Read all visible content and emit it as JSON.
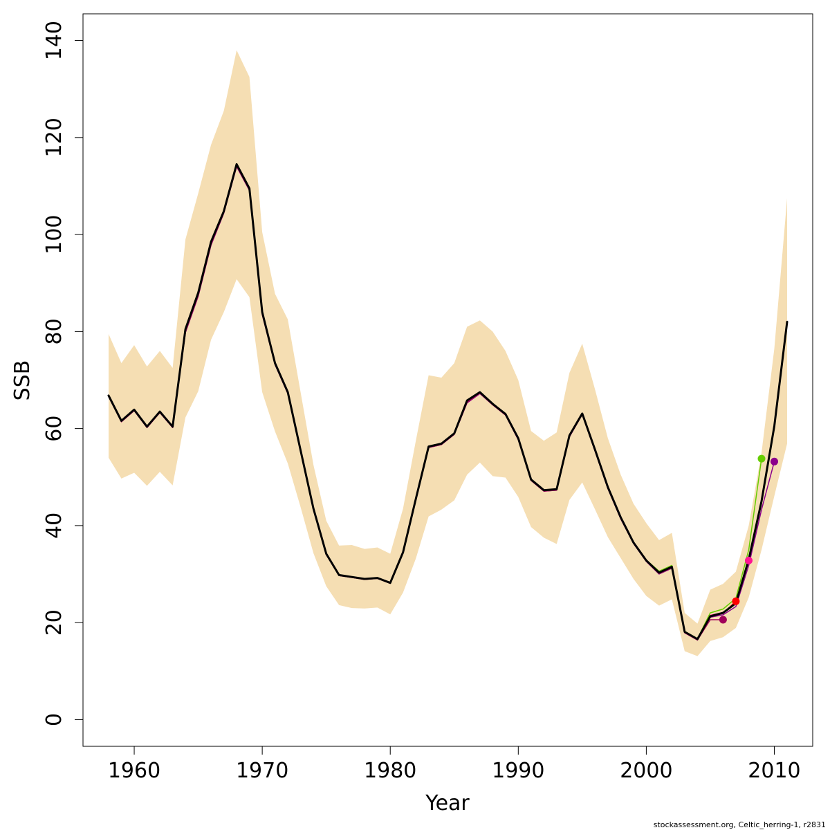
{
  "chart_data": {
    "type": "line",
    "title": "",
    "xlabel": "Year",
    "ylabel": "SSB",
    "xlim": [
      1956,
      2013
    ],
    "ylim": [
      -5.5,
      145.5
    ],
    "x_ticks": [
      1960,
      1970,
      1980,
      1990,
      2000,
      2010
    ],
    "y_ticks": [
      0,
      20,
      40,
      60,
      80,
      100,
      120,
      140
    ],
    "grid": false,
    "legend": "none",
    "band": {
      "color": "#f5deb3",
      "x": [
        1958,
        1959,
        1960,
        1961,
        1962,
        1963,
        1964,
        1965,
        1966,
        1967,
        1968,
        1969,
        1970,
        1971,
        1972,
        1973,
        1974,
        1975,
        1976,
        1977,
        1978,
        1979,
        1980,
        1981,
        1982,
        1983,
        1984,
        1985,
        1986,
        1987,
        1988,
        1989,
        1990,
        1991,
        1992,
        1993,
        1994,
        1995,
        1996,
        1997,
        1998,
        1999,
        2000,
        2001,
        2002,
        2003,
        2004,
        2005,
        2006,
        2007,
        2008,
        2009,
        2010,
        2011
      ],
      "upper": [
        79.5,
        73.5,
        77.2,
        72.8,
        76.0,
        72.5,
        99.0,
        108.5,
        118.5,
        125.5,
        138.0,
        132.5,
        100.5,
        87.8,
        82.5,
        67.5,
        52.5,
        41.0,
        35.9,
        36.0,
        35.2,
        35.5,
        34.2,
        43.5,
        57.5,
        71.0,
        70.5,
        73.5,
        81.0,
        82.3,
        80.0,
        76.0,
        70.0,
        59.5,
        57.5,
        59.2,
        71.5,
        77.5,
        68.0,
        58.0,
        50.5,
        44.5,
        40.5,
        37.0,
        38.5,
        22.0,
        19.8,
        26.8,
        28.0,
        30.5,
        40.0,
        55.0,
        76.5,
        107.5
      ],
      "lower": [
        54.0,
        49.7,
        50.9,
        48.2,
        51.1,
        48.3,
        62.3,
        67.7,
        78.3,
        84.0,
        90.8,
        87.1,
        67.5,
        59.4,
        52.8,
        43.8,
        34.3,
        27.5,
        23.6,
        23.0,
        22.9,
        23.1,
        21.7,
        26.2,
        33.2,
        41.9,
        43.3,
        45.2,
        50.5,
        53.0,
        50.2,
        49.9,
        45.9,
        39.7,
        37.5,
        36.2,
        45.3,
        48.9,
        43.3,
        37.6,
        33.3,
        29.0,
        25.5,
        23.5,
        24.8,
        14.1,
        13.1,
        16.2,
        17.0,
        18.9,
        25.2,
        35.0,
        46.1,
        56.9
      ]
    },
    "series": [
      {
        "color": "#000000",
        "width": 3,
        "x": [
          1958,
          1959,
          1960,
          1961,
          1962,
          1963,
          1964,
          1965,
          1966,
          1967,
          1968,
          1969,
          1970,
          1971,
          1972,
          1973,
          1974,
          1975,
          1976,
          1977,
          1978,
          1979,
          1980,
          1981,
          1982,
          1983,
          1984,
          1985,
          1986,
          1987,
          1988,
          1989,
          1990,
          1991,
          1992,
          1993,
          1994,
          1995,
          1996,
          1997,
          1998,
          1999,
          2000,
          2001,
          2002,
          2003,
          2004,
          2005,
          2006,
          2007,
          2008,
          2009,
          2010,
          2011
        ],
        "values": [
          66.8,
          61.6,
          63.9,
          60.4,
          63.5,
          60.4,
          80.5,
          88.0,
          98.5,
          104.8,
          114.5,
          109.5,
          84.0,
          73.5,
          67.5,
          55.5,
          43.5,
          34.2,
          29.8,
          29.4,
          29.0,
          29.2,
          28.2,
          34.5,
          45.5,
          56.3,
          56.9,
          59.0,
          65.8,
          67.5,
          65.1,
          63.0,
          58.0,
          49.5,
          47.3,
          47.5,
          58.6,
          63.1,
          55.6,
          47.9,
          41.7,
          36.5,
          32.8,
          30.3,
          31.5,
          18.1,
          16.6,
          21.3,
          22.0,
          24.0,
          33.0,
          45.0,
          60.5,
          82.0
        ]
      },
      {
        "color": "#8b008b",
        "width": 1.5,
        "x": [
          1958,
          1959,
          1960,
          1961,
          1962,
          1963,
          1964,
          1965,
          1966,
          1967,
          1968,
          1969,
          1970,
          1971,
          1972,
          1973,
          1974,
          1975,
          1976,
          1977,
          1978,
          1979,
          1980,
          1981,
          1982,
          1983,
          1984,
          1985,
          1986,
          1987,
          1988,
          1989,
          1990,
          1991,
          1992,
          1993,
          1994,
          1995,
          1996,
          1997,
          1998,
          1999,
          2000,
          2001,
          2002,
          2003,
          2004,
          2005,
          2006,
          2007,
          2008,
          2009,
          2010
        ],
        "values": [
          66.6,
          61.4,
          63.7,
          60.2,
          63.3,
          60.2,
          79.8,
          87.3,
          97.8,
          104.4,
          114.0,
          109.1,
          83.5,
          73.2,
          67.2,
          55.2,
          43.2,
          34.0,
          29.7,
          29.3,
          28.9,
          29.1,
          28.1,
          34.4,
          45.3,
          56.1,
          56.7,
          58.8,
          65.3,
          67.2,
          64.9,
          62.8,
          57.7,
          49.3,
          47.1,
          47.3,
          58.3,
          62.9,
          55.3,
          47.6,
          41.4,
          36.3,
          32.6,
          30.0,
          31.2,
          17.9,
          16.4,
          21.1,
          21.6,
          23.3,
          31.8,
          43.3,
          53.2
        ]
      },
      {
        "color": "#66cd00",
        "width": 1.5,
        "x": [
          1958,
          1959,
          1960,
          1961,
          1962,
          1963,
          1964,
          1965,
          1966,
          1967,
          1968,
          1969,
          1970,
          1971,
          1972,
          1973,
          1974,
          1975,
          1976,
          1977,
          1978,
          1979,
          1980,
          1981,
          1982,
          1983,
          1984,
          1985,
          1986,
          1987,
          1988,
          1989,
          1990,
          1991,
          1992,
          1993,
          1994,
          1995,
          1996,
          1997,
          1998,
          1999,
          2000,
          2001,
          2002,
          2003,
          2004,
          2005,
          2006,
          2007,
          2008,
          2009
        ],
        "values": [
          66.7,
          61.5,
          63.8,
          60.3,
          63.4,
          60.3,
          80.1,
          87.6,
          98.1,
          104.6,
          114.2,
          109.3,
          83.8,
          73.4,
          67.4,
          55.4,
          43.4,
          34.1,
          29.8,
          29.4,
          28.9,
          29.2,
          28.2,
          34.5,
          45.4,
          56.2,
          56.8,
          58.9,
          65.6,
          67.4,
          65.0,
          62.9,
          57.9,
          49.4,
          47.2,
          47.4,
          58.5,
          63.0,
          55.5,
          47.8,
          41.6,
          36.5,
          32.9,
          30.6,
          31.8,
          18.2,
          16.7,
          22.0,
          22.8,
          25.0,
          35.0,
          53.8
        ]
      },
      {
        "color": "#ff1493",
        "width": 1.5,
        "x": [
          1958,
          1959,
          1960,
          1961,
          1962,
          1963,
          1964,
          1965,
          1966,
          1967,
          1968,
          1969,
          1970,
          1971,
          1972,
          1973,
          1974,
          1975,
          1976,
          1977,
          1978,
          1979,
          1980,
          1981,
          1982,
          1983,
          1984,
          1985,
          1986,
          1987,
          1988,
          1989,
          1990,
          1991,
          1992,
          1993,
          1994,
          1995,
          1996,
          1997,
          1998,
          1999,
          2000,
          2001,
          2002,
          2003,
          2004,
          2005,
          2006,
          2007,
          2008
        ],
        "values": [
          66.7,
          61.5,
          63.8,
          60.3,
          63.4,
          60.3,
          80.2,
          87.7,
          98.2,
          104.7,
          114.3,
          109.3,
          83.8,
          73.4,
          67.4,
          55.4,
          43.4,
          34.1,
          29.8,
          29.4,
          28.9,
          29.2,
          28.2,
          34.5,
          45.4,
          56.2,
          56.8,
          58.9,
          65.6,
          67.4,
          65.0,
          62.9,
          57.9,
          49.4,
          47.2,
          47.4,
          58.5,
          63.0,
          55.5,
          47.8,
          41.6,
          36.5,
          32.8,
          30.3,
          31.6,
          18.1,
          16.6,
          21.5,
          22.1,
          24.0,
          32.8
        ]
      },
      {
        "color": "#ff0000",
        "width": 1.5,
        "x": [
          1958,
          1959,
          1960,
          1961,
          1962,
          1963,
          1964,
          1965,
          1966,
          1967,
          1968,
          1969,
          1970,
          1971,
          1972,
          1973,
          1974,
          1975,
          1976,
          1977,
          1978,
          1979,
          1980,
          1981,
          1982,
          1983,
          1984,
          1985,
          1986,
          1987,
          1988,
          1989,
          1990,
          1991,
          1992,
          1993,
          1994,
          1995,
          1996,
          1997,
          1998,
          1999,
          2000,
          2001,
          2002,
          2003,
          2004,
          2005,
          2006,
          2007
        ],
        "values": [
          66.7,
          61.5,
          63.8,
          60.3,
          63.4,
          60.3,
          80.2,
          87.7,
          98.2,
          104.7,
          114.3,
          109.3,
          83.8,
          73.4,
          67.4,
          55.4,
          43.4,
          34.1,
          29.8,
          29.4,
          28.9,
          29.2,
          28.2,
          34.5,
          45.4,
          56.2,
          56.8,
          58.9,
          65.6,
          67.4,
          65.0,
          62.9,
          57.9,
          49.4,
          47.2,
          47.4,
          58.5,
          63.0,
          55.5,
          47.8,
          41.6,
          36.5,
          32.8,
          30.3,
          31.5,
          18.1,
          16.5,
          21.3,
          21.9,
          24.4
        ]
      },
      {
        "color": "#a0005a",
        "width": 1.5,
        "x": [
          1958,
          1959,
          1960,
          1961,
          1962,
          1963,
          1964,
          1965,
          1966,
          1967,
          1968,
          1969,
          1970,
          1971,
          1972,
          1973,
          1974,
          1975,
          1976,
          1977,
          1978,
          1979,
          1980,
          1981,
          1982,
          1983,
          1984,
          1985,
          1986,
          1987,
          1988,
          1989,
          1990,
          1991,
          1992,
          1993,
          1994,
          1995,
          1996,
          1997,
          1998,
          1999,
          2000,
          2001,
          2002,
          2003,
          2004,
          2005,
          2006
        ],
        "values": [
          66.6,
          61.4,
          63.7,
          60.2,
          63.3,
          60.2,
          79.9,
          87.4,
          97.9,
          104.5,
          114.1,
          109.2,
          83.6,
          73.3,
          67.3,
          55.3,
          43.3,
          34.0,
          29.7,
          29.3,
          28.9,
          29.1,
          28.1,
          34.4,
          45.3,
          56.1,
          56.7,
          58.8,
          65.4,
          67.3,
          64.9,
          62.8,
          57.8,
          49.3,
          47.1,
          47.3,
          58.4,
          62.9,
          55.4,
          47.7,
          41.5,
          36.4,
          32.7,
          30.1,
          31.3,
          17.9,
          16.4,
          20.6,
          20.6
        ]
      }
    ],
    "endpoints": [
      {
        "x": 2006,
        "y": 20.6,
        "color": "#a0005a"
      },
      {
        "x": 2007,
        "y": 24.4,
        "color": "#ff0000"
      },
      {
        "x": 2008,
        "y": 32.8,
        "color": "#ff1493"
      },
      {
        "x": 2009,
        "y": 53.8,
        "color": "#66cd00"
      },
      {
        "x": 2010,
        "y": 53.2,
        "color": "#8b008b"
      }
    ]
  },
  "footer": {
    "credit": "stockassessment.org, Celtic_herring-1, r2831"
  }
}
